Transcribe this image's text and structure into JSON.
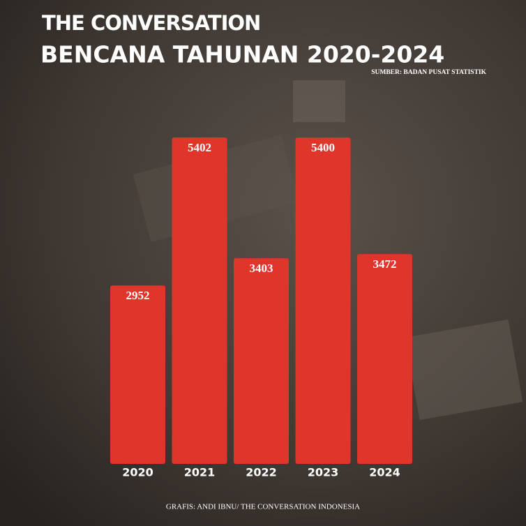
{
  "brand": "THE CONVERSATION",
  "chart_data": {
    "type": "bar",
    "title": "BENCANA TAHUNAN 2020-2024",
    "subtitle": "SUMBER: BADAN PUSAT STATISTIK",
    "footer": "GRAFIS: ANDI IBNU/ THE CONVERSATION INDONESIA",
    "categories": [
      "2020",
      "2021",
      "2022",
      "2023",
      "2024"
    ],
    "values": [
      2952,
      5402,
      3403,
      5400,
      3472
    ],
    "color": "#e0352b"
  }
}
